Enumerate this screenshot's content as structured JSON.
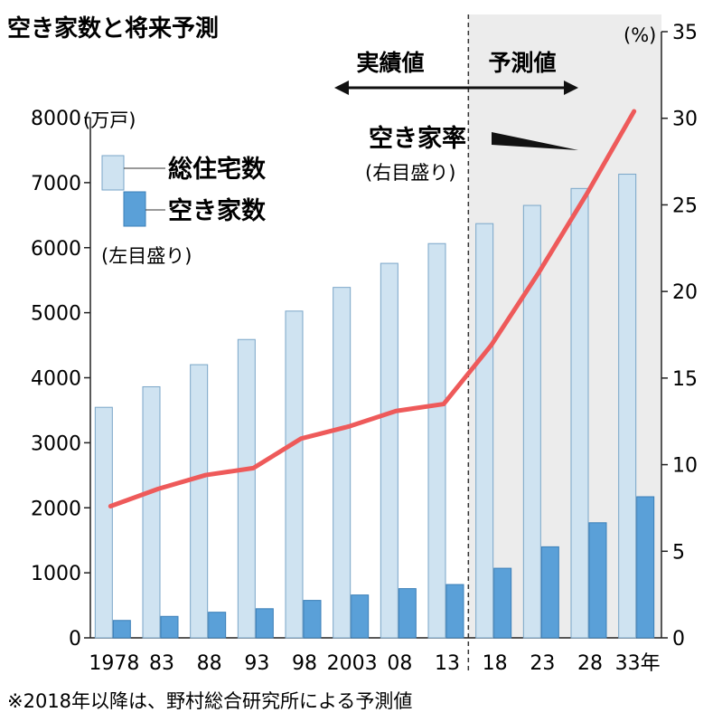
{
  "chart_data": {
    "type": "bar+line",
    "title": "空き家数と将来予測",
    "categories": [
      "1978",
      "83",
      "88",
      "93",
      "98",
      "2003",
      "08",
      "13",
      "18",
      "23",
      "28",
      "33年"
    ],
    "series": [
      {
        "name": "総住宅数",
        "axis": "left",
        "kind": "bar",
        "color": "#cfe3f1",
        "values": [
          3545,
          3861,
          4201,
          4588,
          5025,
          5389,
          5759,
          6063,
          6370,
          6650,
          6910,
          7130
        ]
      },
      {
        "name": "空き家数",
        "axis": "left",
        "kind": "bar",
        "color": "#5aa0d8",
        "values": [
          268,
          330,
          394,
          448,
          576,
          659,
          757,
          820,
          1070,
          1400,
          1770,
          2170
        ]
      },
      {
        "name": "空き家率",
        "axis": "right",
        "kind": "line",
        "color": "#ee5a5a",
        "values": [
          7.6,
          8.6,
          9.4,
          9.8,
          11.5,
          12.2,
          13.1,
          13.5,
          16.9,
          21.1,
          25.6,
          30.4
        ]
      }
    ],
    "y_left": {
      "unit": "(万戸)",
      "ylim": [
        0,
        8000
      ],
      "ticks": [
        "0",
        "1000",
        "2000",
        "3000",
        "4000",
        "5000",
        "6000",
        "7000",
        "8000"
      ],
      "tick_values": [
        0,
        1000,
        2000,
        3000,
        4000,
        5000,
        6000,
        7000,
        8000
      ]
    },
    "y_right": {
      "unit": "(%)",
      "ylim": [
        0,
        35
      ],
      "ticks": [
        "0",
        "5",
        "10",
        "15",
        "20",
        "25",
        "30",
        "35"
      ],
      "tick_values": [
        0,
        5,
        10,
        15,
        20,
        25,
        30,
        35
      ]
    },
    "legend": {
      "item1": "総住宅数",
      "item2": "空き家数",
      "note": "(左目盛り)",
      "position": "top-left"
    },
    "line_label": {
      "title": "空き家率",
      "note": "(右目盛り)"
    },
    "phases": {
      "actual": "実績値",
      "forecast": "予測値",
      "forecast_start_index": 8,
      "shading": "#ececec"
    },
    "footnote": "※2018年以降は、野村総合研究所による予測値"
  }
}
